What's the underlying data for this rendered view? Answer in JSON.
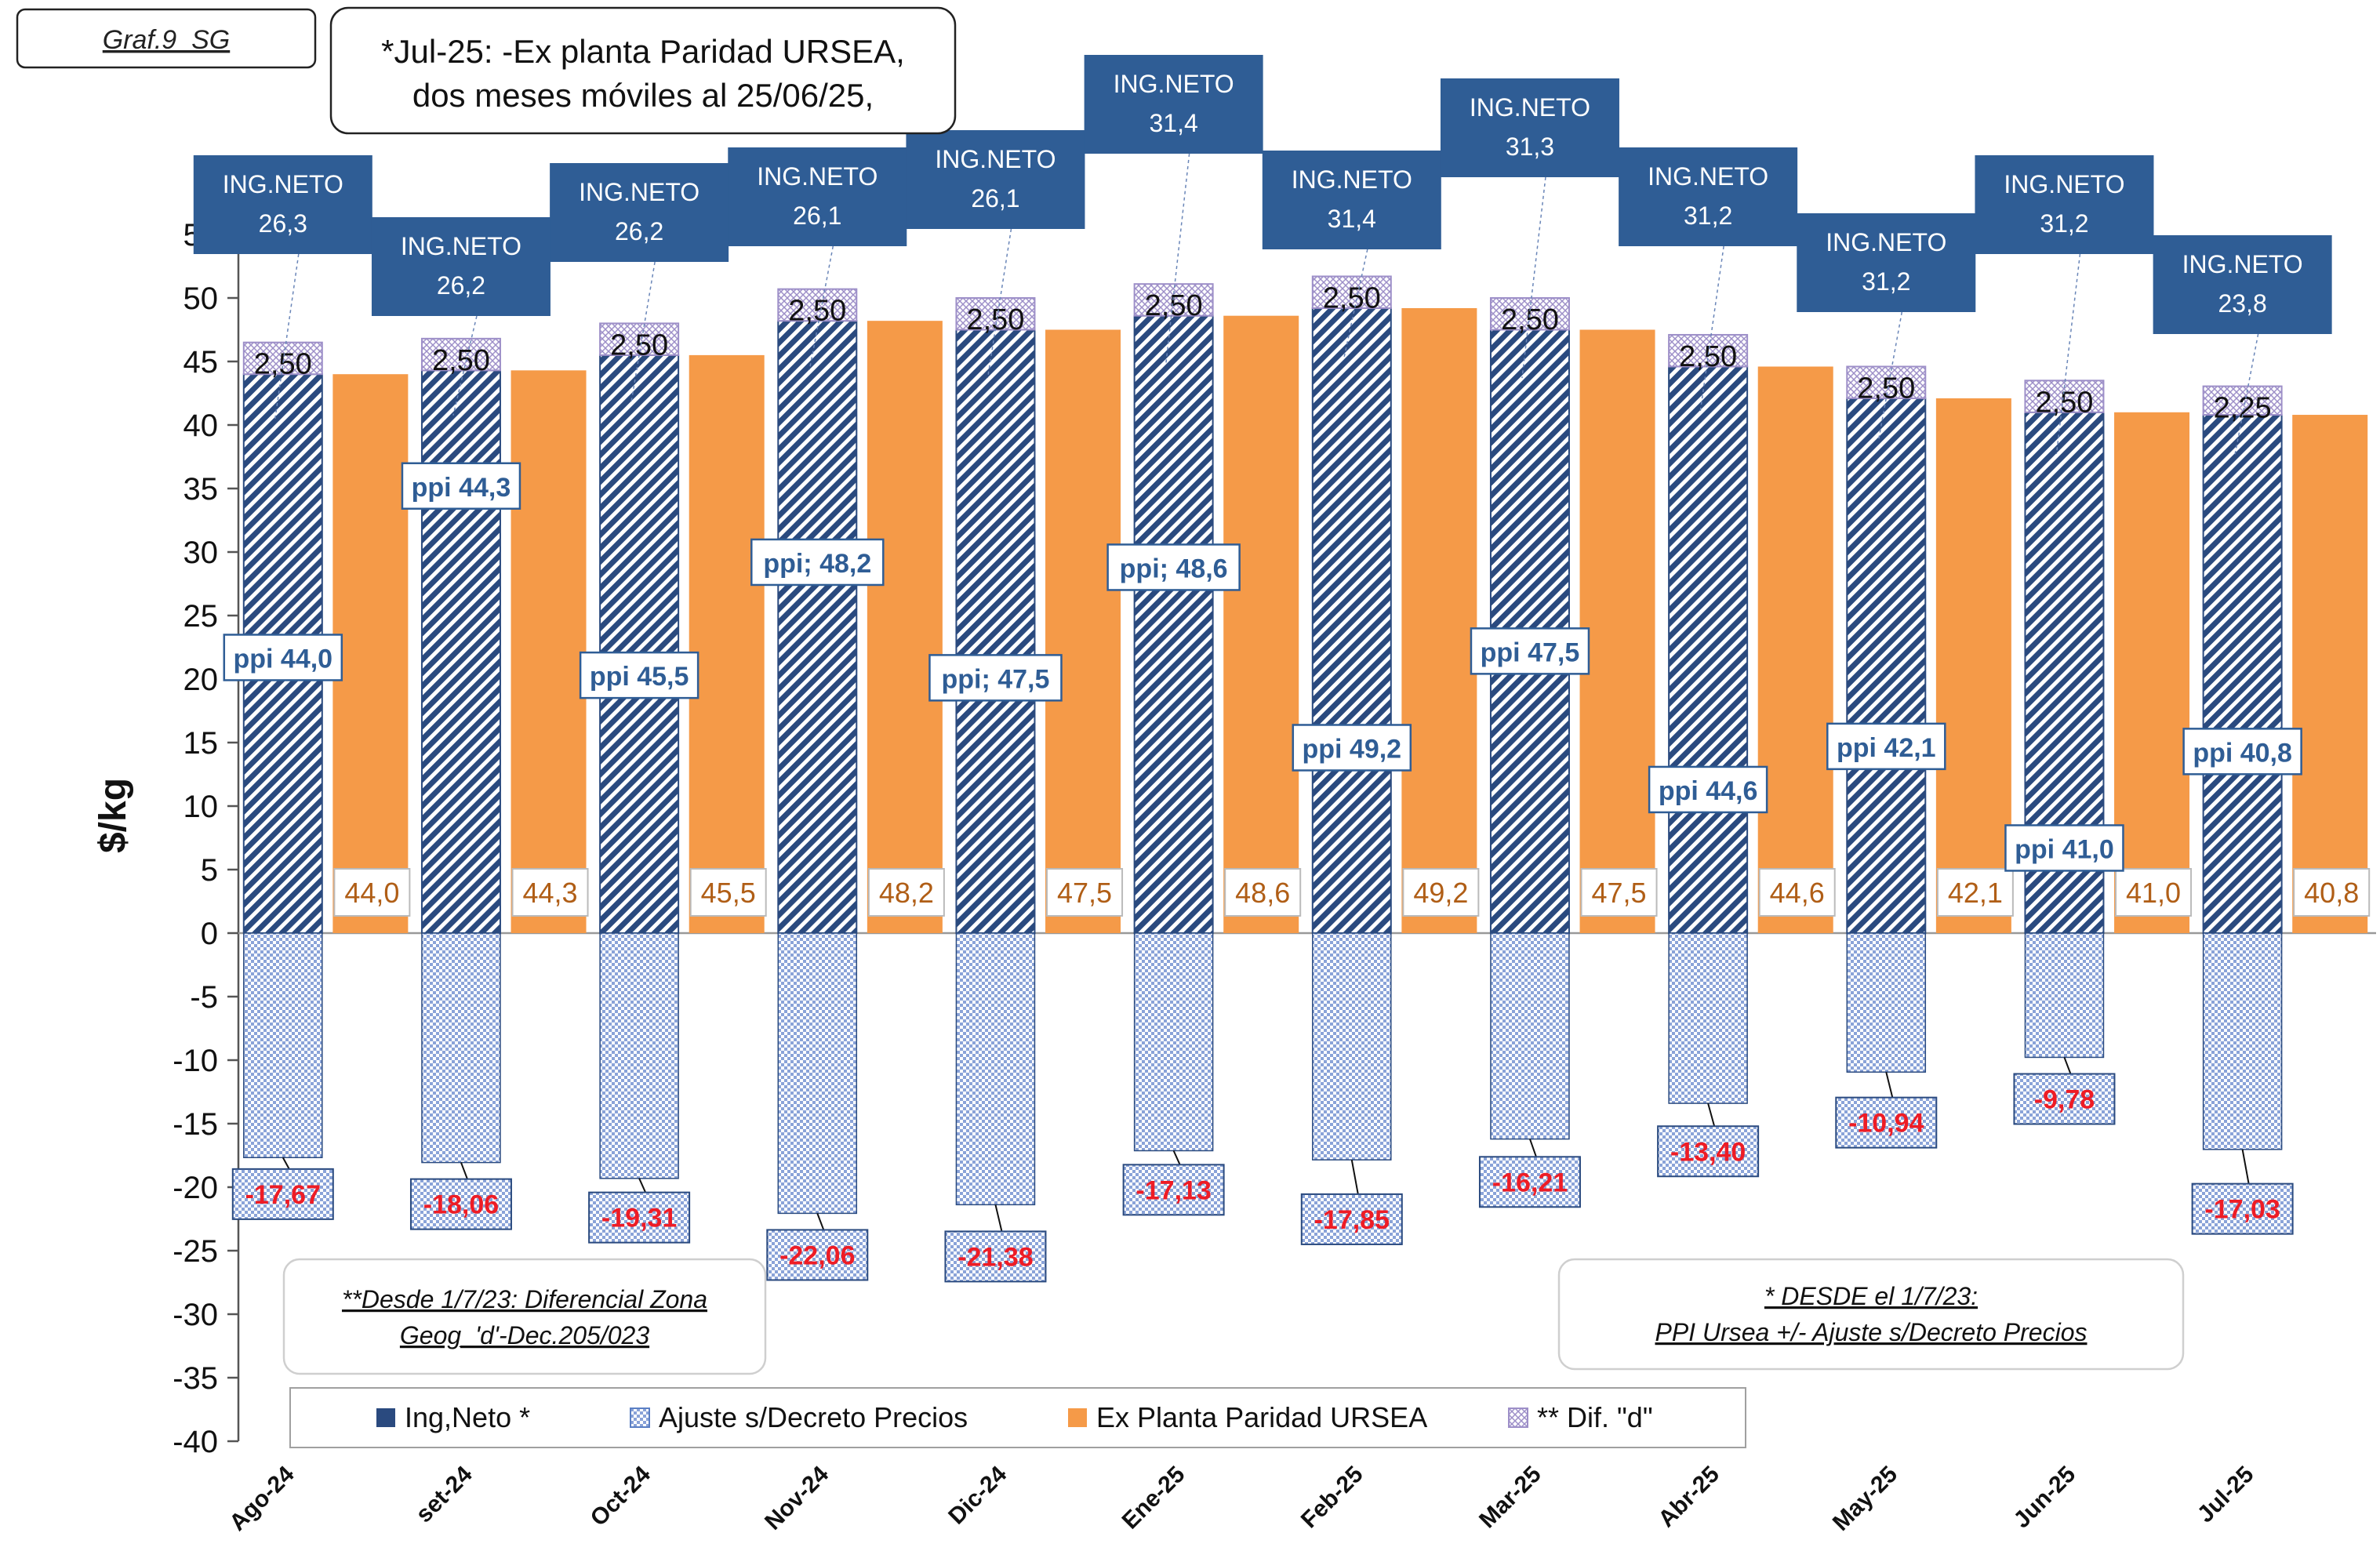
{
  "chart_data": {
    "type": "bar",
    "tag": "Graf.9_SG",
    "note_top": [
      "*Jul-25: -Ex planta Paridad URSEA,",
      "dos meses móviles al 25/06/25,"
    ],
    "ylabel": "$/kg",
    "ylim": [
      -40,
      55
    ],
    "ytick_step": 5,
    "categories": [
      "Ago-24",
      "set-24",
      "Oct-24",
      "Nov-24",
      "Dic-24",
      "Ene-25",
      "Feb-25",
      "Mar-25",
      "Abr-25",
      "May-25",
      "Jun-25",
      "Jul-25"
    ],
    "series": [
      {
        "name": "Ing,Neto *",
        "values": [
          26.3,
          26.2,
          26.2,
          26.1,
          26.1,
          31.4,
          31.4,
          31.3,
          31.2,
          31.2,
          31.2,
          23.8
        ]
      },
      {
        "name": "Ajuste s/Decreto Precios",
        "values": [
          -17.67,
          -18.06,
          -19.31,
          -22.06,
          -21.38,
          -17.13,
          -17.85,
          -16.21,
          -13.4,
          -10.94,
          -9.78,
          -17.03
        ]
      },
      {
        "name": "Ex Planta Paridad URSEA",
        "values": [
          44.0,
          44.3,
          45.5,
          48.2,
          47.5,
          48.6,
          49.2,
          47.5,
          44.6,
          42.1,
          41.0,
          40.8
        ]
      },
      {
        "name": "** Dif. \"d\"",
        "values": [
          2.5,
          2.5,
          2.5,
          2.5,
          2.5,
          2.5,
          2.5,
          2.5,
          2.5,
          2.5,
          2.5,
          2.25
        ]
      }
    ],
    "labels": {
      "ing_neto": [
        "ING.NETO\n26,3",
        "ING.NETO\n26,2",
        "ING.NETO\n26,2",
        "ING.NETO\n26,1",
        "ING.NETO\n26,1",
        "ING.NETO\n31,4",
        "ING.NETO\n31,4",
        "ING.NETO\n31,3",
        "ING.NETO\n31,2",
        "ING.NETO\n31,2",
        "ING.NETO\n31,2",
        "ING.NETO\n23,8"
      ],
      "ppi": [
        "ppi 44,0",
        "ppi 44,3",
        "ppi 45,5",
        "ppi; 48,2",
        "ppi; 47,5",
        "ppi; 48,6",
        "ppi 49,2",
        "ppi 47,5",
        "ppi 44,6",
        "ppi 42,1",
        "ppi 41,0",
        "ppi 40,8"
      ],
      "ajuste": [
        "-17,67",
        "-18,06",
        "-19,31",
        "-22,06",
        "-21,38",
        "-17,13",
        "-17,85",
        "-16,21",
        "-13,40",
        "-10,94",
        "-9,78",
        "-17,03"
      ],
      "urseaval": [
        "44,0",
        "44,3",
        "45,5",
        "48,2",
        "47,5",
        "48,6",
        "49,2",
        "47,5",
        "44,6",
        "42,1",
        "41,0",
        "40,8"
      ],
      "dif": [
        "2,50",
        "2,50",
        "2,50",
        "2,50",
        "2,50",
        "2,50",
        "2,50",
        "2,50",
        "2,50",
        "2,50",
        "2,50",
        "2,25"
      ]
    },
    "notes": {
      "left": [
        "**Desde 1/7/23: Diferencial Zona",
        "Geog_'d'-Dec.205/023"
      ],
      "right": [
        "* DESDE el 1/7/23:",
        "PPI Ursea +/- Ajuste s/Decreto Precios"
      ]
    },
    "legend": {
      "position": "bottom",
      "items": [
        "Ing,Neto *",
        "Ajuste s/Decreto Precios",
        "Ex Planta Paridad URSEA",
        "** Dif. \"d\""
      ]
    },
    "colors": {
      "ing_neto": "#2a4a7f",
      "ajuste": "#5b7fc4",
      "ursea": "#f59a48",
      "dif": "#9d8fc8",
      "label_box": "#2f5d95",
      "neg_text": "#ee1c25",
      "ursea_text": "#b05e16"
    }
  }
}
